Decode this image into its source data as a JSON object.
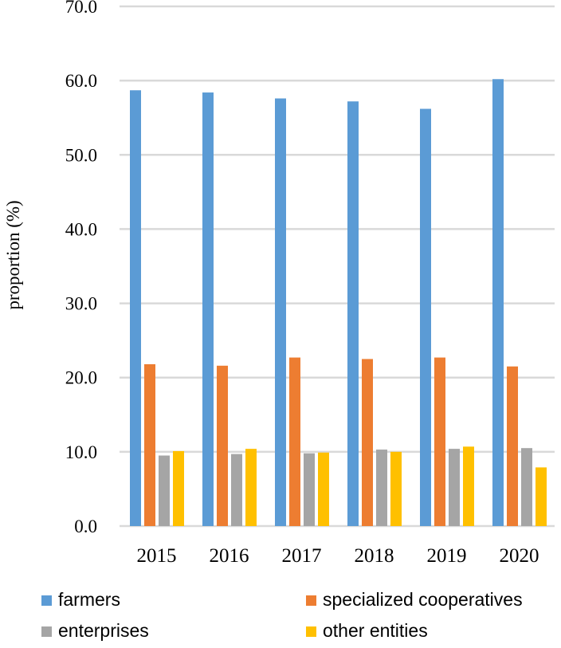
{
  "chart_data": {
    "type": "bar",
    "title": "",
    "xlabel": "",
    "ylabel": "proportion (%)",
    "ylim": [
      0,
      70
    ],
    "yticks": [
      0,
      10,
      20,
      30,
      40,
      50,
      60,
      70
    ],
    "ytick_labels": [
      "0.0",
      "10.0",
      "20.0",
      "30.0",
      "40.0",
      "50.0",
      "60.0",
      "70.0"
    ],
    "grid": true,
    "legend_position": "bottom",
    "categories": [
      "2015",
      "2016",
      "2017",
      "2018",
      "2019",
      "2020"
    ],
    "series": [
      {
        "name": "farmers",
        "color": "#5b9bd5",
        "values": [
          58.7,
          58.4,
          57.6,
          57.2,
          56.2,
          60.2
        ]
      },
      {
        "name": "specialized cooperatives",
        "color": "#ed7d31",
        "values": [
          21.8,
          21.6,
          22.7,
          22.5,
          22.7,
          21.5
        ]
      },
      {
        "name": "enterprises",
        "color": "#a5a5a5",
        "values": [
          9.5,
          9.7,
          9.8,
          10.3,
          10.4,
          10.5
        ]
      },
      {
        "name": "other entities",
        "color": "#ffc000",
        "values": [
          10.1,
          10.4,
          9.9,
          10.0,
          10.7,
          7.9
        ]
      }
    ]
  }
}
